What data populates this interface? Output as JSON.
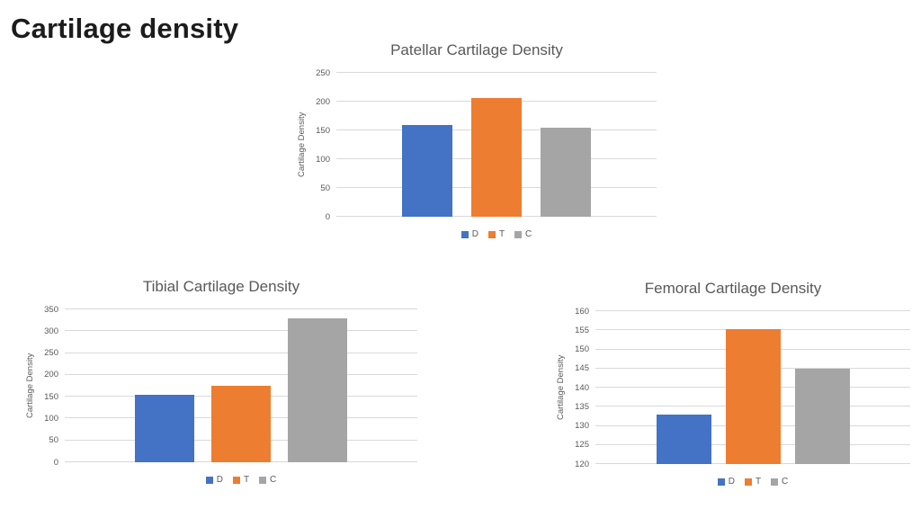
{
  "slide": {
    "title": "Cartilage density"
  },
  "colors": {
    "series_blue": "#4472C4",
    "series_orange": "#ED7D31",
    "series_gray": "#A5A5A5",
    "gridline": "#D9D9D9",
    "axis_text": "#595959",
    "chart_title_text": "#595959",
    "slide_title_text": "#1C1C1C"
  },
  "chart_data": [
    {
      "type": "bar",
      "title": "Patellar Cartilage Density",
      "xlabel": "",
      "ylabel": "Cartilage Density",
      "ylim": [
        0,
        250
      ],
      "ystep": 50,
      "grid": true,
      "legend_position": "bottom",
      "categories": [
        "D",
        "T",
        "C"
      ],
      "values": [
        160,
        207,
        155
      ],
      "colors": [
        "#4472C4",
        "#ED7D31",
        "#A5A5A5"
      ]
    },
    {
      "type": "bar",
      "title": "Tibial Cartilage Density",
      "xlabel": "",
      "ylabel": "Cartilage Density",
      "ylim": [
        0,
        350
      ],
      "ystep": 50,
      "grid": true,
      "legend_position": "bottom",
      "categories": [
        "D",
        "T",
        "C"
      ],
      "values": [
        155,
        175,
        330
      ],
      "colors": [
        "#4472C4",
        "#ED7D31",
        "#A5A5A5"
      ]
    },
    {
      "type": "bar",
      "title": "Femoral Cartilage Density",
      "xlabel": "",
      "ylabel": "Cartilage Density",
      "ylim": [
        120,
        160
      ],
      "ystep": 5,
      "grid": true,
      "legend_position": "bottom",
      "categories": [
        "D",
        "T",
        "C"
      ],
      "values": [
        133,
        155.3,
        145
      ],
      "colors": [
        "#4472C4",
        "#ED7D31",
        "#A5A5A5"
      ]
    }
  ]
}
